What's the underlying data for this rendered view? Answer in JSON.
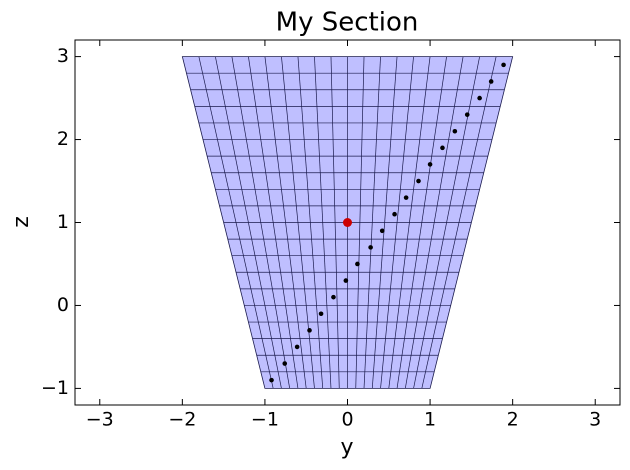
{
  "chart_data": {
    "type": "section",
    "title": "My Section",
    "xlabel": "y",
    "ylabel": "z",
    "xlim": [
      -3.3,
      3.3
    ],
    "ylim": [
      -1.2,
      3.2
    ],
    "xticks": [
      {
        "value": -3,
        "label": "−3"
      },
      {
        "value": -2,
        "label": "−2"
      },
      {
        "value": -1,
        "label": "−1"
      },
      0,
      1,
      2,
      3
    ],
    "yticks": [
      {
        "value": -1,
        "label": "−1"
      },
      0,
      1,
      2,
      3
    ],
    "section": {
      "y": [
        -1,
        1,
        2,
        -2
      ],
      "z": [
        -1,
        -1,
        3,
        3
      ],
      "fill": "#bfbfff",
      "edge": "#1a1a4d"
    },
    "points": {
      "y": [
        -0.92,
        -0.76,
        -0.61,
        -0.46,
        -0.32,
        -0.17,
        -0.02,
        0.12,
        0.28,
        0.42,
        0.57,
        0.71,
        0.86,
        1.0,
        1.15,
        1.3,
        1.45,
        1.6,
        1.74,
        1.89
      ],
      "z": [
        -0.9,
        -0.7,
        -0.5,
        -0.3,
        -0.1,
        0.1,
        0.3,
        0.5,
        0.7,
        0.9,
        1.1,
        1.3,
        1.5,
        1.7,
        1.9,
        2.1,
        2.3,
        2.5,
        2.7,
        2.9
      ],
      "color": "#000000"
    },
    "highlight": {
      "y": 0,
      "z": 1,
      "color": "#cc0000"
    }
  }
}
